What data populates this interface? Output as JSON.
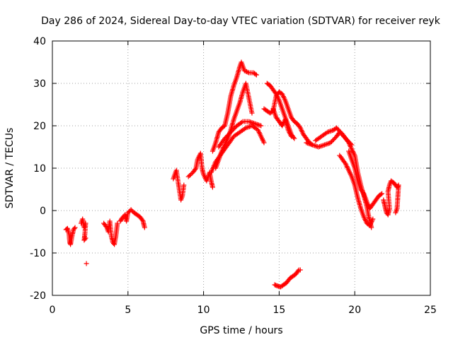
{
  "chart_data": {
    "type": "scatter",
    "title": "Day 286 of 2024, Sidereal Day-to-day VTEC variation (SDTVAR) for receiver reyk",
    "xlabel": "GPS time / hours",
    "ylabel": "SDTVAR / TECUs",
    "xlim": [
      0,
      25
    ],
    "ylim": [
      -20,
      40
    ],
    "xticks": [
      "0",
      "5",
      "10",
      "15",
      "20",
      "25"
    ],
    "yticks": [
      "-20",
      "-10",
      "0",
      "10",
      "20",
      "30",
      "40"
    ],
    "grid": true,
    "marker": "+",
    "color": "#ff0000",
    "series": [
      {
        "name": "SDTVAR",
        "segments": [
          [
            [
              0.9,
              -4.5
            ],
            [
              1.0,
              -4.2
            ],
            [
              1.1,
              -5.5
            ],
            [
              1.15,
              -7.5
            ],
            [
              1.2,
              -8.0
            ],
            [
              1.3,
              -6.0
            ],
            [
              1.4,
              -4.5
            ],
            [
              1.5,
              -4.0
            ]
          ],
          [
            [
              1.9,
              -3.0
            ],
            [
              2.0,
              -2.0
            ],
            [
              2.1,
              -4.0
            ],
            [
              2.2,
              -3.0
            ],
            [
              2.15,
              -5.5
            ],
            [
              2.1,
              -7.0
            ],
            [
              2.2,
              -6.5
            ]
          ],
          [
            [
              2.25,
              -12.5
            ]
          ],
          [
            [
              3.4,
              -3.0
            ],
            [
              3.6,
              -4.0
            ],
            [
              3.7,
              -5.0
            ],
            [
              3.8,
              -2.5
            ],
            [
              3.9,
              -6.0
            ],
            [
              4.0,
              -7.5
            ],
            [
              4.1,
              -8.0
            ],
            [
              4.2,
              -6.0
            ],
            [
              4.3,
              -3.0
            ]
          ],
          [
            [
              4.5,
              -2.5
            ],
            [
              4.6,
              -1.8
            ],
            [
              4.8,
              -1.0
            ],
            [
              4.9,
              -2.5
            ],
            [
              5.0,
              -0.5
            ],
            [
              5.2,
              0.2
            ],
            [
              5.4,
              -0.5
            ],
            [
              5.6,
              -1.0
            ],
            [
              5.8,
              -1.5
            ],
            [
              6.0,
              -2.5
            ],
            [
              6.1,
              -4.0
            ]
          ],
          [
            [
              8.0,
              7.5
            ],
            [
              8.1,
              8.5
            ],
            [
              8.2,
              9.5
            ],
            [
              8.5,
              2.5
            ],
            [
              8.6,
              3.5
            ],
            [
              8.7,
              6.0
            ]
          ],
          [
            [
              9.0,
              8.0
            ],
            [
              9.3,
              9.0
            ],
            [
              9.5,
              10.0
            ],
            [
              9.6,
              12.0
            ],
            [
              9.8,
              13.5
            ],
            [
              9.9,
              10.0
            ],
            [
              10.0,
              8.5
            ],
            [
              10.2,
              7.0
            ],
            [
              10.4,
              9.0
            ],
            [
              10.5,
              7.0
            ],
            [
              10.6,
              5.5
            ]
          ],
          [
            [
              10.6,
              14.0
            ],
            [
              10.8,
              16.0
            ],
            [
              11.0,
              18.5
            ],
            [
              11.2,
              19.5
            ],
            [
              11.4,
              20.0
            ],
            [
              11.6,
              23.0
            ],
            [
              11.8,
              27.0
            ],
            [
              12.0,
              29.5
            ],
            [
              12.2,
              31.5
            ],
            [
              12.4,
              34.0
            ],
            [
              12.5,
              35.0
            ],
            [
              12.7,
              33.0
            ],
            [
              13.0,
              32.5
            ],
            [
              13.3,
              32.5
            ],
            [
              13.5,
              32.0
            ]
          ],
          [
            [
              10.8,
              10.0
            ],
            [
              11.0,
              12.0
            ],
            [
              11.2,
              14.0
            ],
            [
              11.4,
              15.5
            ],
            [
              11.6,
              17.0
            ],
            [
              11.8,
              19.0
            ],
            [
              12.0,
              21.5
            ],
            [
              12.2,
              23.5
            ],
            [
              12.4,
              25.5
            ],
            [
              12.6,
              28.0
            ],
            [
              12.8,
              30.0
            ],
            [
              13.0,
              26.5
            ],
            [
              13.2,
              23.0
            ]
          ],
          [
            [
              10.5,
              9.0
            ],
            [
              10.8,
              11.5
            ],
            [
              11.2,
              13.5
            ],
            [
              11.6,
              15.5
            ],
            [
              12.0,
              17.5
            ],
            [
              12.4,
              18.5
            ],
            [
              12.8,
              19.5
            ],
            [
              13.2,
              20.0
            ],
            [
              13.6,
              19.0
            ],
            [
              13.8,
              17.5
            ],
            [
              14.0,
              16.0
            ]
          ],
          [
            [
              11.0,
              15.0
            ],
            [
              11.4,
              17.0
            ],
            [
              11.8,
              18.5
            ],
            [
              12.2,
              20.0
            ],
            [
              12.6,
              21.0
            ],
            [
              13.0,
              21.0
            ],
            [
              13.4,
              20.5
            ],
            [
              13.8,
              20.0
            ]
          ],
          [
            [
              14.0,
              24.0
            ],
            [
              14.2,
              23.5
            ],
            [
              14.4,
              23.0
            ],
            [
              14.6,
              23.5
            ],
            [
              14.8,
              27.0
            ],
            [
              15.0,
              28.0
            ],
            [
              15.2,
              27.5
            ],
            [
              15.4,
              26.0
            ],
            [
              15.6,
              24.0
            ],
            [
              15.8,
              22.0
            ],
            [
              16.0,
              21.0
            ],
            [
              16.2,
              20.5
            ],
            [
              16.4,
              19.5
            ],
            [
              16.6,
              18.0
            ],
            [
              16.8,
              17.0
            ],
            [
              17.0,
              16.0
            ],
            [
              17.2,
              15.5
            ]
          ],
          [
            [
              14.2,
              30.0
            ],
            [
              14.4,
              29.5
            ],
            [
              14.6,
              28.5
            ],
            [
              14.8,
              27.5
            ],
            [
              15.0,
              26.0
            ],
            [
              15.2,
              24.0
            ],
            [
              15.4,
              22.0
            ],
            [
              15.6,
              20.0
            ],
            [
              15.8,
              18.0
            ],
            [
              16.0,
              17.0
            ]
          ],
          [
            [
              14.6,
              24.0
            ],
            [
              14.8,
              22.0
            ],
            [
              15.0,
              21.0
            ],
            [
              15.2,
              20.0
            ],
            [
              15.4,
              21.5
            ],
            [
              15.6,
              19.0
            ],
            [
              15.8,
              17.5
            ]
          ],
          [
            [
              16.8,
              16.0
            ],
            [
              17.2,
              15.5
            ],
            [
              17.6,
              15.0
            ],
            [
              18.0,
              15.5
            ],
            [
              18.4,
              16.0
            ],
            [
              18.8,
              17.5
            ],
            [
              19.0,
              18.5
            ],
            [
              19.4,
              17.0
            ],
            [
              19.8,
              15.5
            ]
          ],
          [
            [
              17.4,
              16.5
            ],
            [
              17.8,
              17.5
            ],
            [
              18.2,
              18.5
            ],
            [
              18.6,
              19.0
            ],
            [
              18.8,
              19.5
            ],
            [
              19.2,
              18.0
            ],
            [
              19.6,
              16.0
            ],
            [
              20.0,
              13.0
            ],
            [
              20.2,
              9.0
            ],
            [
              20.4,
              6.0
            ],
            [
              20.6,
              3.5
            ],
            [
              20.8,
              1.0
            ],
            [
              20.9,
              -1.0
            ],
            [
              21.0,
              -2.5
            ],
            [
              21.1,
              -4.0
            ]
          ],
          [
            [
              19.0,
              13.0
            ],
            [
              19.4,
              11.0
            ],
            [
              19.8,
              8.0
            ],
            [
              20.0,
              6.0
            ],
            [
              20.2,
              3.0
            ],
            [
              20.4,
              0.5
            ],
            [
              20.6,
              -1.5
            ],
            [
              20.8,
              -3.0
            ],
            [
              21.0,
              -3.5
            ],
            [
              21.2,
              -2.0
            ]
          ],
          [
            [
              19.6,
              14.0
            ],
            [
              19.8,
              12.0
            ],
            [
              20.0,
              10.0
            ],
            [
              20.2,
              7.0
            ],
            [
              20.4,
              5.0
            ],
            [
              20.6,
              4.0
            ],
            [
              20.8,
              2.0
            ],
            [
              21.0,
              0.5
            ],
            [
              21.2,
              1.5
            ],
            [
              21.4,
              2.5
            ],
            [
              21.6,
              3.5
            ],
            [
              21.8,
              4.0
            ]
          ],
          [
            [
              21.9,
              2.5
            ],
            [
              22.0,
              1.0
            ],
            [
              22.1,
              -0.5
            ],
            [
              22.2,
              -1.0
            ],
            [
              22.3,
              0.5
            ],
            [
              22.2,
              4.5
            ],
            [
              22.3,
              6.0
            ],
            [
              22.4,
              7.0
            ],
            [
              22.6,
              6.5
            ],
            [
              22.8,
              5.5
            ],
            [
              22.9,
              6.0
            ],
            [
              22.8,
              0.5
            ],
            [
              22.7,
              -0.5
            ]
          ],
          [
            [
              14.7,
              -17.5
            ],
            [
              14.9,
              -17.8
            ],
            [
              15.1,
              -18.0
            ],
            [
              15.3,
              -17.5
            ],
            [
              15.5,
              -17.0
            ],
            [
              15.7,
              -16.0
            ],
            [
              15.9,
              -15.5
            ],
            [
              16.1,
              -15.0
            ],
            [
              16.3,
              -14.0
            ],
            [
              16.4,
              -14.0
            ]
          ]
        ]
      }
    ]
  }
}
